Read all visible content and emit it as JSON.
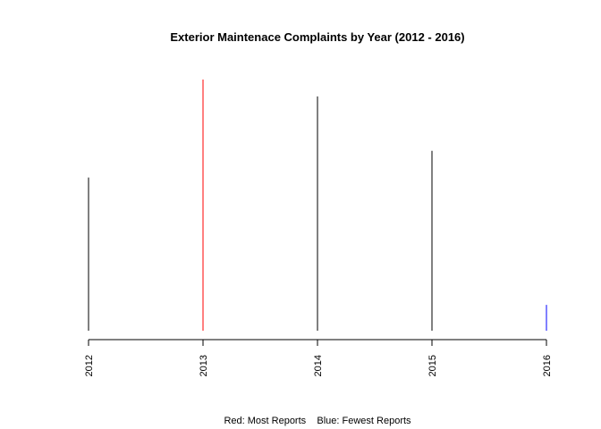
{
  "chart_data": {
    "type": "bar",
    "style": "histogram-lines",
    "title": "Exterior Maintenace Complaints by Year (2012 - 2016)",
    "xlabel": "",
    "ylabel": "",
    "categories": [
      "2012",
      "2013",
      "2014",
      "2015",
      "2016"
    ],
    "values": [
      172,
      282,
      263,
      202,
      29
    ],
    "ylim": [
      0,
      282
    ],
    "colors": [
      "#000000",
      "#ff0000",
      "#000000",
      "#000000",
      "#0000ff"
    ],
    "y_axis_shown": false,
    "grid": false,
    "note": "Red: Most Reports    Blue: Fewest Reports"
  }
}
